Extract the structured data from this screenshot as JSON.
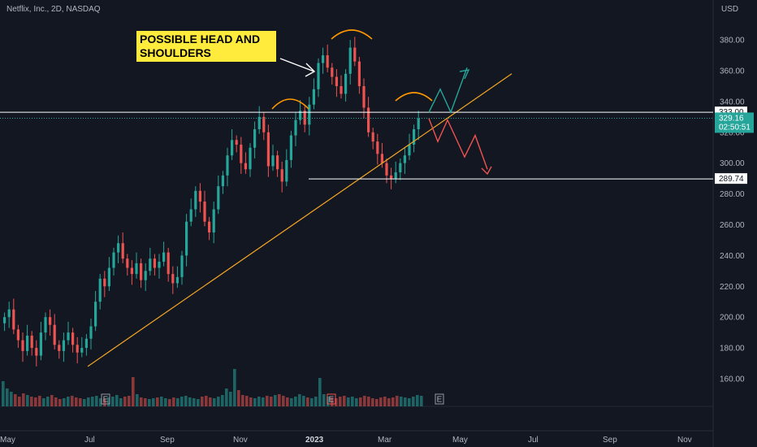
{
  "header": {
    "symbol_title": "Netflix, Inc., 2D, NASDAQ"
  },
  "annotation": {
    "text": "POSSIBLE HEAD AND\nSHOULDERS"
  },
  "price_axis": {
    "currency_label": "USD",
    "ticks": [
      "380.00",
      "360.00",
      "340.00",
      "320.00",
      "300.00",
      "280.00",
      "260.00",
      "240.00",
      "220.00",
      "200.00",
      "180.00",
      "160.00"
    ]
  },
  "time_axis": {
    "ticks": [
      "May",
      "Jul",
      "Sep",
      "Nov",
      "2023",
      "Mar",
      "May",
      "Jul",
      "Sep",
      "Nov"
    ]
  },
  "tags": {
    "resistance": "333.00",
    "last_price": "329.16",
    "countdown": "02:50:51",
    "support": "289.74"
  },
  "earnings_marker": "E",
  "colors": {
    "background": "#131722",
    "up": "#26a69a",
    "down": "#ef5350",
    "trendline": "#f5a623",
    "annotation_bg": "#ffeb3b",
    "level_line": "#ffffff",
    "arc": "#ff9800",
    "bull_path": "#26a69a",
    "bear_path": "#ef5350"
  },
  "chart_data": {
    "type": "candlestick",
    "title": "Netflix, Inc., 2D, NASDAQ",
    "y_unit": "USD",
    "ylim": [
      145,
      392
    ],
    "x_ticks": [
      "May",
      "Jul",
      "Sep",
      "Nov",
      "2023",
      "Mar",
      "May",
      "Jul",
      "Sep",
      "Nov"
    ],
    "horizontal_levels": [
      333.0,
      289.74
    ],
    "last_price": 329.16,
    "trendline": {
      "from": [
        "Jul",
        168
      ],
      "to": [
        "May",
        358
      ]
    },
    "series": [
      {
        "name": "price",
        "close_path": [
          200,
          205,
          192,
          185,
          178,
          188,
          180,
          175,
          190,
          200,
          195,
          182,
          178,
          185,
          190,
          182,
          177,
          180,
          186,
          194,
          210,
          225,
          220,
          232,
          242,
          248,
          238,
          232,
          228,
          235,
          224,
          230,
          238,
          232,
          236,
          242,
          228,
          222,
          226,
          240,
          262,
          270,
          282,
          275,
          262,
          255,
          270,
          285,
          292,
          305,
          315,
          312,
          300,
          296,
          310,
          322,
          330,
          320,
          298,
          305,
          296,
          288,
          302,
          318,
          328,
          334,
          325,
          338,
          348,
          365,
          370,
          362,
          356,
          350,
          345,
          358,
          375,
          366,
          350,
          336,
          320,
          314,
          306,
          300,
          292,
          290,
          294,
          300,
          305,
          312,
          322,
          329
        ]
      },
      {
        "name": "volume",
        "bars": [
          3.1,
          2.2,
          1.8,
          1.5,
          1.2,
          1.6,
          1.4,
          1.2,
          1.1,
          1.3,
          1.0,
          1.2,
          1.4,
          1.1,
          0.9,
          1.0,
          1.2,
          1.3,
          1.1,
          1.0,
          0.9,
          1.1,
          1.2,
          1.3,
          1.0,
          0.9,
          1.1,
          1.2,
          1.4,
          1.0,
          1.2,
          1.3,
          3.6,
          1.5,
          1.1,
          1.0,
          0.9,
          1.0,
          1.1,
          1.2,
          1.0,
          0.9,
          1.1,
          1.0,
          1.2,
          1.3,
          1.1,
          1.0,
          0.9,
          1.2,
          1.3,
          1.1,
          1.0,
          1.2,
          1.4,
          2.2,
          1.8,
          4.6,
          2.0,
          1.4,
          1.3,
          1.1,
          1.0,
          1.2,
          1.1,
          1.3,
          1.2,
          1.4,
          1.5,
          1.3,
          1.1,
          1.0,
          1.2,
          1.5,
          1.3,
          1.1,
          1.0,
          1.2,
          3.5,
          1.5,
          1.2,
          1.1,
          1.0,
          1.2,
          1.3,
          1.1,
          1.2,
          1.0,
          1.1,
          1.3,
          1.2,
          1.0,
          0.9,
          1.1,
          1.2,
          1.0,
          1.1,
          1.3,
          1.2,
          1.1,
          1.0,
          1.2,
          1.4,
          1.3
        ]
      }
    ],
    "projections": {
      "bull_path": [
        333,
        348,
        333,
        362
      ],
      "bear_path": [
        329,
        314,
        328,
        304,
        318,
        296
      ]
    }
  }
}
